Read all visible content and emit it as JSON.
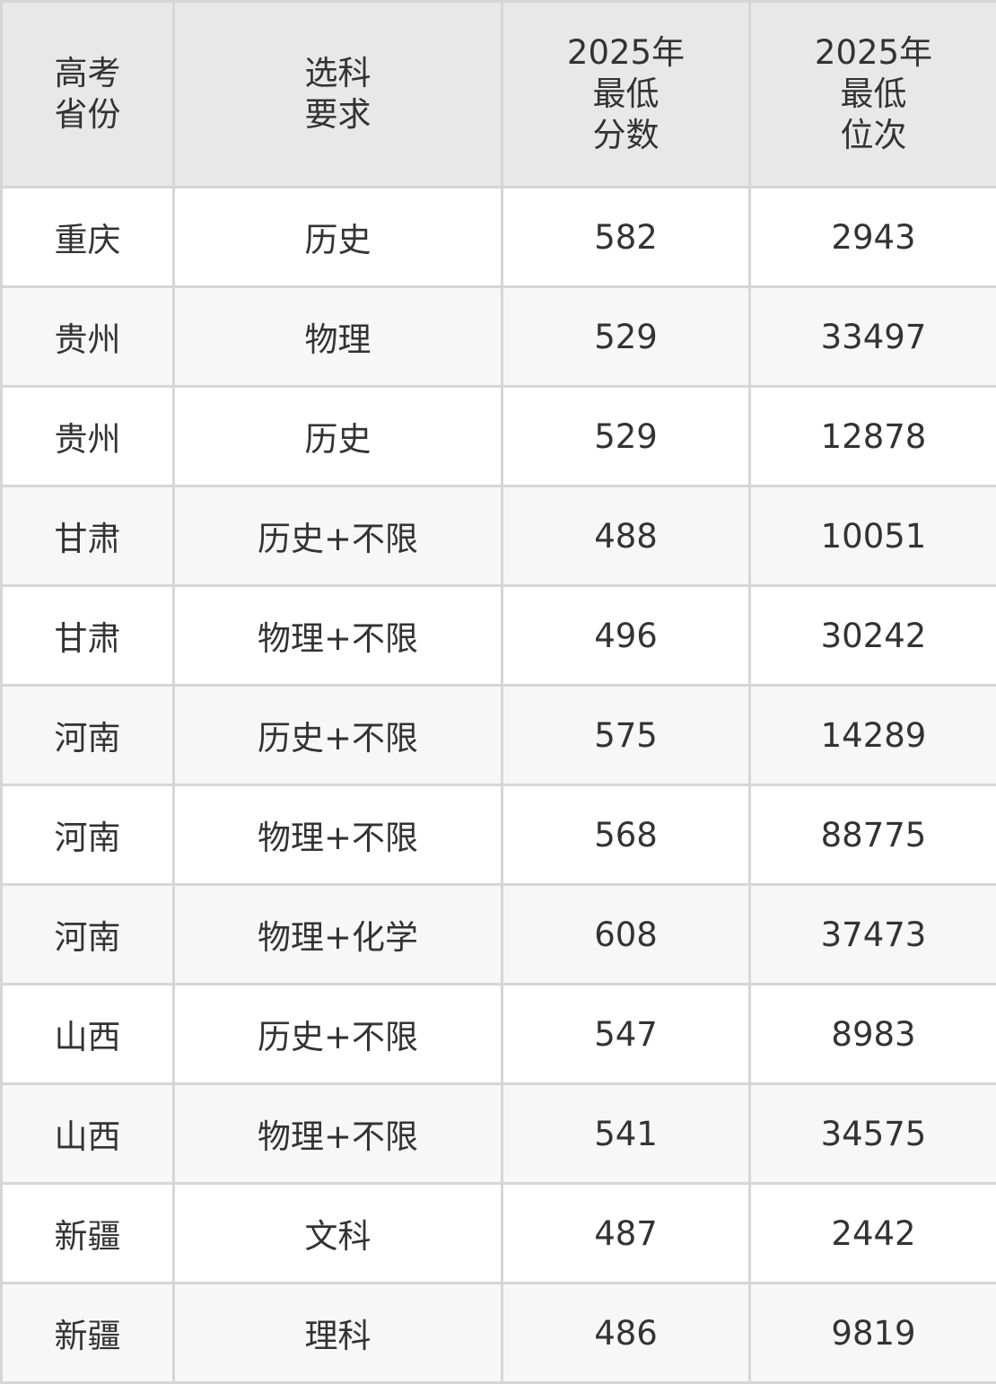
{
  "table": {
    "header": [
      "高考\n省份",
      "选科\n要求",
      "2025年\n最低\n分数",
      "2025年\n最低\n位次"
    ],
    "rows": [
      [
        "重庆",
        "历史",
        582,
        2943
      ],
      [
        "贵州",
        "物理",
        529,
        33497
      ],
      [
        "贵州",
        "历史",
        529,
        12878
      ],
      [
        "甘肃",
        "历史+不限",
        488,
        10051
      ],
      [
        "甘肃",
        "物理+不限",
        496,
        30242
      ],
      [
        "河南",
        "历史+不限",
        575,
        14289
      ],
      [
        "河南",
        "物理+不限",
        568,
        88775
      ],
      [
        "河南",
        "物理+化学",
        608,
        37473
      ],
      [
        "山西",
        "历史+不限",
        547,
        8983
      ],
      [
        "山西",
        "物理+不限",
        541,
        34575
      ],
      [
        "新疆",
        "文科",
        487,
        2442
      ],
      [
        "新疆",
        "理科",
        486,
        9819
      ]
    ]
  }
}
